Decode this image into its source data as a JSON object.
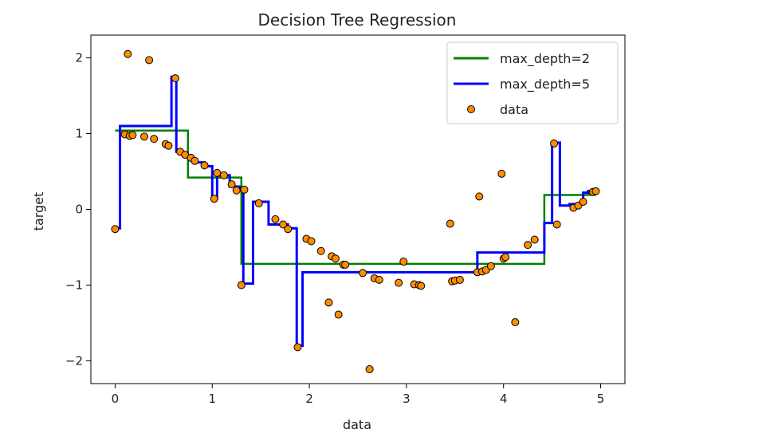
{
  "chart_data": {
    "type": "line",
    "title": "Decision Tree Regression",
    "xlabel": "data",
    "ylabel": "target",
    "xlim": [
      -0.25,
      5.25
    ],
    "ylim": [
      -2.3,
      2.3
    ],
    "xticks": [
      0,
      1,
      2,
      3,
      4,
      5
    ],
    "xtick_labels": [
      "0",
      "1",
      "2",
      "3",
      "4",
      "5"
    ],
    "yticks": [
      -2,
      -1,
      0,
      1,
      2
    ],
    "ytick_labels": [
      "−2",
      "−1",
      "0",
      "1",
      "2"
    ],
    "grid": false,
    "legend_position": "top-right",
    "series": [
      {
        "name": "max_depth=2",
        "kind": "step-line",
        "color": "#008000",
        "x": [
          0.0,
          0.75,
          0.75,
          1.3,
          1.3,
          4.42,
          4.42,
          4.95
        ],
        "y": [
          1.04,
          1.04,
          0.42,
          0.42,
          -0.72,
          -0.72,
          0.19,
          0.19
        ]
      },
      {
        "name": "max_depth=5",
        "kind": "step-line",
        "color": "#0000ff",
        "x": [
          0.0,
          0.05,
          0.05,
          0.58,
          0.58,
          0.63,
          0.63,
          0.7,
          0.7,
          0.8,
          0.8,
          0.92,
          0.92,
          1.0,
          1.0,
          1.05,
          1.05,
          1.18,
          1.18,
          1.28,
          1.28,
          1.32,
          1.32,
          1.42,
          1.42,
          1.58,
          1.58,
          1.78,
          1.78,
          1.87,
          1.87,
          1.93,
          1.93,
          3.73,
          3.73,
          4.42,
          4.42,
          4.5,
          4.5,
          4.58,
          4.58,
          4.68,
          4.68,
          4.82,
          4.82,
          4.87,
          4.87,
          4.95
        ],
        "y": [
          -0.25,
          -0.25,
          1.1,
          1.1,
          1.75,
          1.75,
          0.76,
          0.76,
          0.7,
          0.7,
          0.62,
          0.62,
          0.57,
          0.57,
          0.14,
          0.14,
          0.45,
          0.45,
          0.3,
          0.3,
          0.25,
          0.25,
          -0.98,
          -0.98,
          0.1,
          0.1,
          -0.2,
          -0.2,
          -0.25,
          -0.25,
          -1.8,
          -1.8,
          -0.83,
          -0.83,
          -0.57,
          -0.57,
          -0.18,
          -0.18,
          0.88,
          0.88,
          0.05,
          0.05,
          0.07,
          0.07,
          0.22,
          0.22,
          0.24,
          0.24
        ]
      },
      {
        "name": "data",
        "kind": "scatter",
        "color": "#ff8c00",
        "edgecolor": "#000000",
        "x": [
          0.0,
          0.1,
          0.13,
          0.15,
          0.18,
          0.3,
          0.35,
          0.4,
          0.52,
          0.55,
          0.62,
          0.67,
          0.72,
          0.78,
          0.82,
          0.92,
          1.02,
          1.05,
          1.12,
          1.2,
          1.25,
          1.3,
          1.33,
          1.48,
          1.65,
          1.73,
          1.78,
          1.88,
          1.97,
          2.02,
          2.12,
          2.2,
          2.23,
          2.27,
          2.3,
          2.35,
          2.37,
          2.55,
          2.62,
          2.67,
          2.72,
          2.92,
          2.97,
          3.08,
          3.13,
          3.15,
          3.45,
          3.47,
          3.5,
          3.55,
          3.73,
          3.75,
          3.78,
          3.82,
          3.87,
          3.98,
          4.0,
          4.02,
          4.12,
          4.25,
          4.32,
          4.52,
          4.55,
          4.72,
          4.77,
          4.82,
          4.92,
          4.95
        ],
        "y": [
          -0.26,
          0.99,
          2.05,
          0.97,
          0.98,
          0.96,
          1.97,
          0.93,
          0.86,
          0.84,
          1.73,
          0.76,
          0.72,
          0.68,
          0.64,
          0.58,
          0.14,
          0.48,
          0.45,
          0.33,
          0.25,
          -1.0,
          0.26,
          0.08,
          -0.13,
          -0.2,
          -0.26,
          -1.82,
          -0.39,
          -0.42,
          -0.55,
          -1.23,
          -0.62,
          -0.65,
          -1.39,
          -0.73,
          -0.73,
          -0.84,
          -2.11,
          -0.91,
          -0.93,
          -0.97,
          -0.69,
          -0.99,
          -1.0,
          -1.01,
          -0.19,
          -0.95,
          -0.94,
          -0.93,
          -0.83,
          0.17,
          -0.82,
          -0.8,
          -0.75,
          0.47,
          -0.65,
          -0.63,
          -1.49,
          -0.47,
          -0.4,
          0.87,
          -0.2,
          0.02,
          0.05,
          0.1,
          0.23,
          0.24
        ]
      }
    ]
  }
}
